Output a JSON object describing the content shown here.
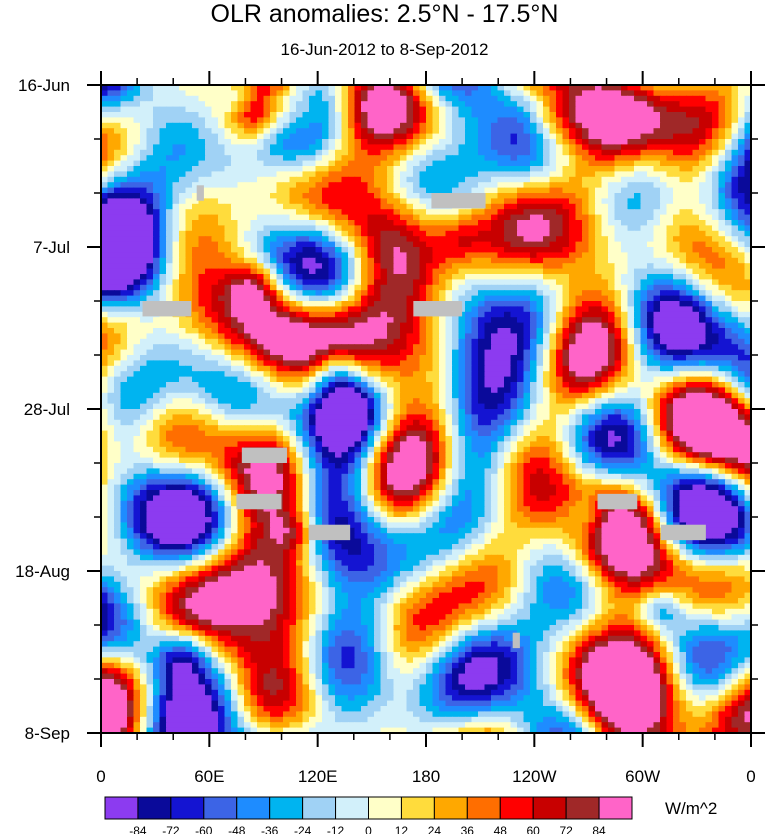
{
  "chart_data": {
    "type": "heatmap",
    "title": "OLR anomalies: 2.5°N - 17.5°N",
    "subtitle": "16-Jun-2012 to 8-Sep-2012",
    "x_ticks": [
      "0",
      "60E",
      "120E",
      "180",
      "120W",
      "60W",
      "0"
    ],
    "y_ticks": [
      "16-Jun",
      "7-Jul",
      "28-Jul",
      "18-Aug",
      "8-Sep"
    ],
    "y_tick_days": [
      0,
      21,
      42,
      63,
      84
    ],
    "x_range_deg": [
      0,
      360
    ],
    "y_range_days": [
      0,
      84
    ],
    "colorbar": {
      "units": "W/m^2",
      "levels": [
        "-84",
        "-72",
        "-60",
        "-48",
        "-36",
        "-24",
        "-12",
        "0",
        "12",
        "24",
        "36",
        "48",
        "60",
        "72",
        "84"
      ],
      "colors": [
        "#8c3bf0",
        "#0a0a9a",
        "#1414d2",
        "#3c64e6",
        "#1e8cff",
        "#00b4f0",
        "#a0d2f5",
        "#d2f0fa",
        "#ffffc8",
        "#ffdc3c",
        "#ffa800",
        "#ff6e00",
        "#ff0000",
        "#c80000",
        "#a02828",
        "#ff64c8"
      ]
    },
    "missing_color": "#c0c0c0",
    "features": [
      {
        "name": "warm anomaly",
        "lon": 85,
        "day": 4,
        "value": 55
      },
      {
        "name": "warm anomaly",
        "lon": 110,
        "day": 4,
        "value": 45
      },
      {
        "name": "warm anomaly",
        "lon": 85,
        "day": 26,
        "value": 55
      },
      {
        "name": "cold anomaly",
        "lon": 75,
        "day": 1,
        "value": -60
      },
      {
        "name": "cold anomaly",
        "lon": 135,
        "day": 42,
        "value": -70
      },
      {
        "name": "cold anomaly",
        "lon": 130,
        "day": 37,
        "value": -55
      },
      {
        "name": "warm anomaly",
        "lon": 107,
        "day": 58,
        "value": 50
      },
      {
        "name": "cold anomaly",
        "lon": 270,
        "day": 56,
        "value": -55
      },
      {
        "name": "cold anomaly",
        "lon": 310,
        "day": 68,
        "value": -60
      },
      {
        "name": "cold anomaly",
        "lon": 45,
        "day": 74,
        "value": -55
      },
      {
        "name": "warm anomaly",
        "lon": 200,
        "day": 20,
        "value": 30
      },
      {
        "name": "warm anomaly",
        "lon": 250,
        "day": 5,
        "value": 30
      }
    ],
    "missing_boxes": [
      {
        "lon": [
          183,
          213
        ],
        "day": [
          14,
          16
        ]
      },
      {
        "lon": [
          23,
          50
        ],
        "day": [
          28,
          30
        ]
      },
      {
        "lon": [
          173,
          200
        ],
        "day": [
          28,
          30
        ]
      },
      {
        "lon": [
          78,
          103
        ],
        "day": [
          47,
          49
        ]
      },
      {
        "lon": [
          75,
          100
        ],
        "day": [
          53,
          55
        ]
      },
      {
        "lon": [
          115,
          138
        ],
        "day": [
          57,
          59
        ]
      },
      {
        "lon": [
          275,
          297
        ],
        "day": [
          53,
          55
        ]
      },
      {
        "lon": [
          310,
          335
        ],
        "day": [
          57,
          59
        ]
      },
      {
        "lon": [
          53,
          57
        ],
        "day": [
          13,
          15
        ]
      },
      {
        "lon": [
          228,
          232
        ],
        "day": [
          71,
          73
        ]
      }
    ]
  }
}
